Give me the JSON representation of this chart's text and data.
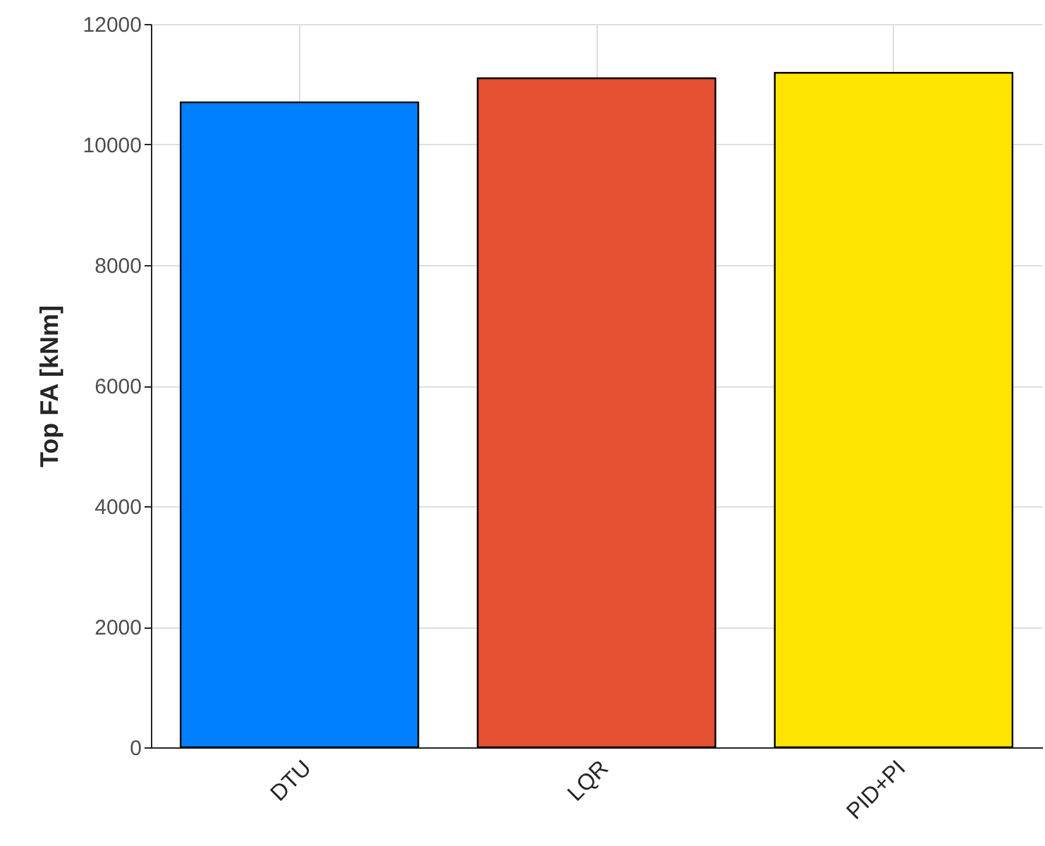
{
  "chart_data": {
    "type": "bar",
    "categories": [
      "DTU",
      "LQR",
      "PID+PI"
    ],
    "values": [
      10700,
      11100,
      11190
    ],
    "colors": [
      "#0080ff",
      "#e65033",
      "#ffe400"
    ],
    "ylabel": "Top FA [kNm]",
    "ylim": [
      0,
      12000
    ],
    "yticks": [
      0,
      2000,
      4000,
      6000,
      8000,
      10000,
      12000
    ],
    "grid": true
  }
}
